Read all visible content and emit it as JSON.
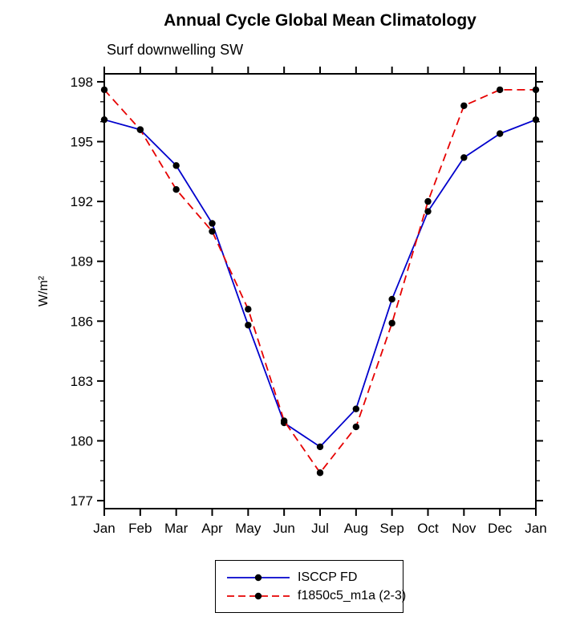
{
  "chart_data": {
    "type": "line",
    "title": "Annual Cycle Global Mean Climatology",
    "subtitle": "Surf downwelling SW",
    "ylabel": "W/m²",
    "xlabel": "",
    "categories": [
      "Jan",
      "Feb",
      "Mar",
      "Apr",
      "May",
      "Jun",
      "Jul",
      "Aug",
      "Sep",
      "Oct",
      "Nov",
      "Dec",
      "Jan"
    ],
    "ylim": [
      176.6,
      198.4
    ],
    "yticks_major": [
      177,
      180,
      183,
      186,
      189,
      192,
      195,
      198
    ],
    "yticks_minor_step": 1,
    "grid": false,
    "legend_position": "bottom-center",
    "axis_color": "#000000",
    "series": [
      {
        "name": "ISCCP FD",
        "color": "#0000cc",
        "style": "solid",
        "marker": "circle",
        "marker_color": "#000000",
        "values": [
          196.1,
          195.6,
          193.8,
          190.9,
          185.8,
          180.9,
          179.7,
          181.6,
          187.1,
          191.5,
          194.2,
          195.4,
          196.1
        ]
      },
      {
        "name": "f1850c5_m1a (2-3)",
        "color": "#e60000",
        "style": "dashed",
        "marker": "circle",
        "marker_color": "#000000",
        "values": [
          197.6,
          195.6,
          192.6,
          190.5,
          186.6,
          181.0,
          178.4,
          180.7,
          185.9,
          192.0,
          196.8,
          197.6,
          197.6
        ]
      }
    ]
  }
}
